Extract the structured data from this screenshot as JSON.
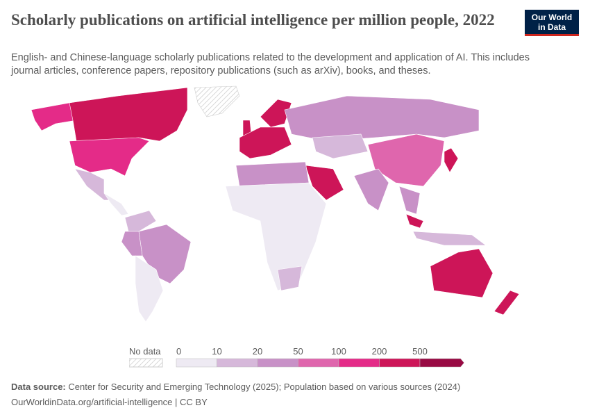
{
  "header": {
    "title": "Scholarly publications on artificial intelligence per million people, 2022",
    "subtitle": "English- and Chinese-language scholarly publications related to the development and application of AI. This includes journal articles, conference papers, repository publications (such as arXiv), books, and theses."
  },
  "logo": {
    "line1": "Our World",
    "line2": "in Data"
  },
  "legend": {
    "no_data_label": "No data",
    "ticks": [
      "0",
      "10",
      "20",
      "50",
      "100",
      "200",
      "500"
    ],
    "bins": [
      {
        "min": 0,
        "max": 10,
        "color": "#eeeaf3"
      },
      {
        "min": 10,
        "max": 20,
        "color": "#d6b8da"
      },
      {
        "min": 20,
        "max": 50,
        "color": "#c891c7"
      },
      {
        "min": 50,
        "max": 100,
        "color": "#df66ad"
      },
      {
        "min": 100,
        "max": 200,
        "color": "#e42b88"
      },
      {
        "min": 200,
        "max": 500,
        "color": "#cd1558"
      },
      {
        "min": 500,
        "max": null,
        "color": "#980a43"
      }
    ]
  },
  "footer": {
    "source_label": "Data source:",
    "source_text": "Center for Security and Emerging Technology (2025); Population based on various sources (2024)",
    "url_text": "OurWorldinData.org/artificial-intelligence | CC BY"
  }
}
